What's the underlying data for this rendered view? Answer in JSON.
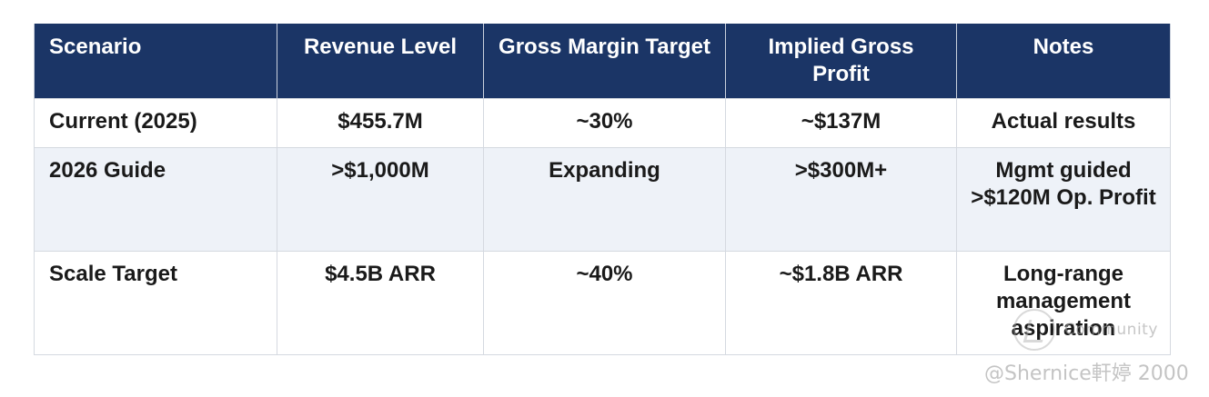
{
  "table": {
    "headers": [
      "Scenario",
      "Revenue Level",
      "Gross Margin Target",
      "Implied Gross Profit",
      "Notes"
    ],
    "rows": [
      {
        "scenario": "Current (2025)",
        "revenue": "$455.7M",
        "margin": "~30%",
        "profit": "~$137M",
        "notes": "Actual results"
      },
      {
        "scenario": "2026 Guide",
        "revenue": ">$1,000M",
        "margin": "Expanding",
        "profit": ">$300M+",
        "notes": "Mgmt guided >$120M Op. Profit"
      },
      {
        "scenario": "Scale Target",
        "revenue": "$4.5B ARR",
        "margin": "~40%",
        "profit": "~$1.8B ARR",
        "notes": "Long-range management aspiration"
      }
    ]
  },
  "watermark": {
    "community": "Community",
    "handle": "@Shernice軒婷 2000"
  }
}
